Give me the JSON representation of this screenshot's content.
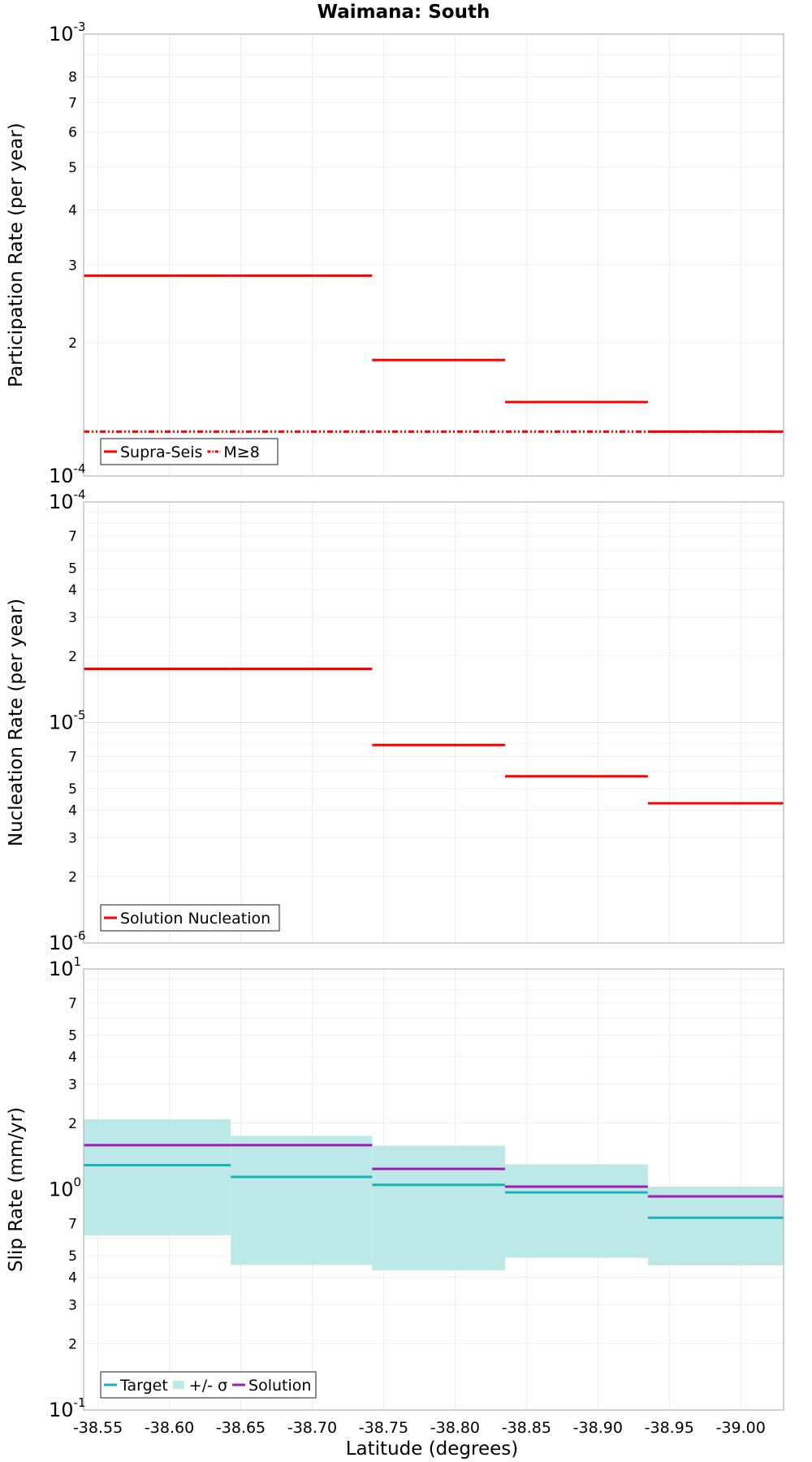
{
  "title": "Waimana: South",
  "xlabel": "Latitude (degrees)",
  "chart_data": [
    {
      "type": "line",
      "ylabel": "Participation Rate (per year)",
      "yscale": "log",
      "ylim": [
        0.0001,
        0.001
      ],
      "xlim": [
        -38.54,
        -39.03
      ],
      "xticks": [
        "-38.55",
        "-38.60",
        "-38.65",
        "-38.70",
        "-38.75",
        "-38.80",
        "-38.85",
        "-38.90",
        "-38.95",
        "-39.00"
      ],
      "yticks": [
        {
          "base": "10",
          "exp": "-4"
        },
        {
          "label": "2"
        },
        {
          "label": "3"
        },
        {
          "label": "4"
        },
        {
          "label": "5"
        },
        {
          "label": "6"
        },
        {
          "label": "7"
        },
        {
          "label": "8"
        },
        {
          "base": "10",
          "exp": "-3"
        }
      ],
      "legend": [
        "Supra-Seis",
        "M≥8"
      ],
      "legend_position": "bottom-left",
      "grid": true,
      "series": [
        {
          "name": "Supra-Seis",
          "color": "#ff0000",
          "style": "solid",
          "segments": [
            {
              "x0": -38.54,
              "x1": -38.643,
              "y": 0.000284
            },
            {
              "x0": -38.643,
              "x1": -38.742,
              "y": 0.000284
            },
            {
              "x0": -38.742,
              "x1": -38.835,
              "y": 0.000183
            },
            {
              "x0": -38.835,
              "x1": -38.935,
              "y": 0.000147
            },
            {
              "x0": -38.935,
              "x1": -39.03,
              "y": 0.000126
            }
          ]
        },
        {
          "name": "M≥8",
          "color": "#ff0000",
          "style": "dash-dot-dot",
          "segments": [
            {
              "x0": -38.54,
              "x1": -39.03,
              "y": 0.000126
            }
          ]
        }
      ]
    },
    {
      "type": "line",
      "ylabel": "Nucleation Rate (per year)",
      "yscale": "log",
      "ylim": [
        1e-06,
        0.0001
      ],
      "xlim": [
        -38.54,
        -39.03
      ],
      "yticks": [
        {
          "base": "10",
          "exp": "-6"
        },
        {
          "label": "2"
        },
        {
          "label": "3"
        },
        {
          "label": "4"
        },
        {
          "label": "5"
        },
        {
          "label": "7"
        },
        {
          "base": "10",
          "exp": "-5"
        },
        {
          "label": "2"
        },
        {
          "label": "3"
        },
        {
          "label": "4"
        },
        {
          "label": "5"
        },
        {
          "label": "7"
        },
        {
          "base": "10",
          "exp": "-4"
        }
      ],
      "legend": [
        "Solution Nucleation"
      ],
      "legend_position": "bottom-left",
      "grid": true,
      "series": [
        {
          "name": "Solution Nucleation",
          "color": "#ff0000",
          "style": "solid",
          "segments": [
            {
              "x0": -38.54,
              "x1": -38.643,
              "y": 1.75e-05
            },
            {
              "x0": -38.643,
              "x1": -38.742,
              "y": 1.75e-05
            },
            {
              "x0": -38.742,
              "x1": -38.835,
              "y": 7.9e-06
            },
            {
              "x0": -38.835,
              "x1": -38.935,
              "y": 5.7e-06
            },
            {
              "x0": -38.935,
              "x1": -39.03,
              "y": 4.3e-06
            }
          ]
        }
      ]
    },
    {
      "type": "line",
      "ylabel": "Slip Rate (mm/yr)",
      "yscale": "log",
      "ylim": [
        0.1,
        10
      ],
      "xlim": [
        -38.54,
        -39.03
      ],
      "yticks": [
        {
          "base": "10",
          "exp": "-1"
        },
        {
          "label": "2"
        },
        {
          "label": "3"
        },
        {
          "label": "4"
        },
        {
          "label": "5"
        },
        {
          "label": "7"
        },
        {
          "base": "10",
          "exp": "0"
        },
        {
          "label": "2"
        },
        {
          "label": "3"
        },
        {
          "label": "4"
        },
        {
          "label": "5"
        },
        {
          "label": "7"
        },
        {
          "base": "10",
          "exp": "1"
        }
      ],
      "legend": [
        "Target",
        "+/- σ",
        "Solution"
      ],
      "legend_position": "bottom-left",
      "grid": true,
      "band": {
        "name": "+/- σ",
        "color": "#bde8e8",
        "segments": [
          {
            "x0": -38.54,
            "x1": -38.643,
            "low": 0.62,
            "high": 2.08
          },
          {
            "x0": -38.643,
            "x1": -38.742,
            "low": 0.455,
            "high": 1.75
          },
          {
            "x0": -38.742,
            "x1": -38.835,
            "low": 0.43,
            "high": 1.58
          },
          {
            "x0": -38.835,
            "x1": -38.935,
            "low": 0.49,
            "high": 1.3
          },
          {
            "x0": -38.935,
            "x1": -39.03,
            "low": 0.453,
            "high": 1.03
          }
        ]
      },
      "series": [
        {
          "name": "Target",
          "color": "#1ab3b3",
          "style": "solid",
          "segments": [
            {
              "x0": -38.54,
              "x1": -38.643,
              "y": 1.29
            },
            {
              "x0": -38.643,
              "x1": -38.742,
              "y": 1.14
            },
            {
              "x0": -38.742,
              "x1": -38.835,
              "y": 1.05
            },
            {
              "x0": -38.835,
              "x1": -38.935,
              "y": 0.97
            },
            {
              "x0": -38.935,
              "x1": -39.03,
              "y": 0.745
            }
          ]
        },
        {
          "name": "Solution",
          "color": "#a31ab3",
          "style": "solid",
          "segments": [
            {
              "x0": -38.54,
              "x1": -38.643,
              "y": 1.59
            },
            {
              "x0": -38.643,
              "x1": -38.742,
              "y": 1.59
            },
            {
              "x0": -38.742,
              "x1": -38.835,
              "y": 1.24
            },
            {
              "x0": -38.835,
              "x1": -38.935,
              "y": 1.03
            },
            {
              "x0": -38.935,
              "x1": -39.03,
              "y": 0.93
            }
          ]
        }
      ]
    }
  ]
}
